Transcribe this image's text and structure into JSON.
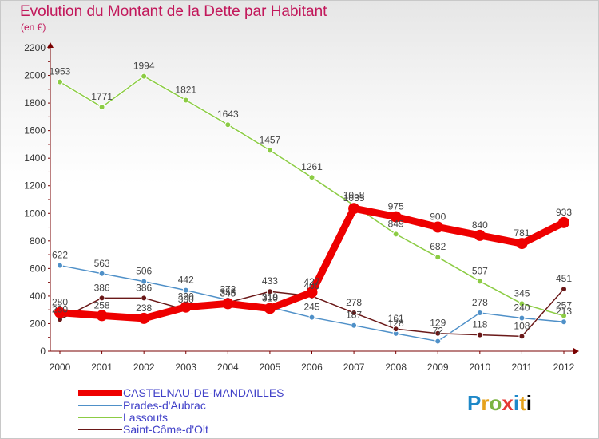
{
  "title": "Evolution du Montant de la Dette par Habitant",
  "subtitle": "(en €)",
  "logo": {
    "letters": [
      "P",
      "r",
      "o",
      "x",
      "i",
      "t",
      "i"
    ]
  },
  "chart_data": {
    "type": "line",
    "title": "Evolution du Montant de la Dette par Habitant",
    "ylabel": "(en €)",
    "xlabel": "",
    "x": [
      "2000",
      "2001",
      "2002",
      "2003",
      "2004",
      "2005",
      "2006",
      "2007",
      "2008",
      "2009",
      "2010",
      "2011",
      "2012"
    ],
    "ylim": [
      0,
      2200
    ],
    "yticks": [
      "0",
      "200",
      "400",
      "600",
      "800",
      "1000",
      "1200",
      "1400",
      "1600",
      "1800",
      "2000",
      "2200"
    ],
    "grid": false,
    "legend_position": "bottom-left",
    "series": [
      {
        "name": "CASTELNAU-DE-MANDAILLES",
        "color": "#ee0000",
        "style": "bold",
        "values": [
          280,
          258,
          238,
          320,
          345,
          310,
          427,
          1035,
          975,
          900,
          840,
          781,
          933
        ],
        "labels": [
          "280",
          "258",
          "238",
          "320",
          "345",
          "310",
          "427",
          "1035",
          "975",
          "900",
          "840",
          "781",
          "933"
        ]
      },
      {
        "name": "Prades-d'Aubrac",
        "color": "#4f90c8",
        "style": "thin",
        "values": [
          622,
          563,
          506,
          442,
          372,
          319,
          245,
          187,
          128,
          72,
          278,
          240,
          213
        ],
        "labels": [
          "622",
          "563",
          "506",
          "442",
          "372",
          "319",
          "245",
          "187",
          "128",
          "72",
          "278",
          "240",
          "213"
        ]
      },
      {
        "name": "Lassouts",
        "color": "#8ccc44",
        "style": "thin",
        "values": [
          1953,
          1771,
          1994,
          1821,
          1643,
          1457,
          1261,
          1058,
          849,
          682,
          507,
          345,
          257
        ],
        "labels": [
          "1953",
          "1771",
          "1994",
          "1821",
          "1643",
          "1457",
          "1261",
          "1058",
          "849",
          "682",
          "507",
          "345",
          "257"
        ]
      },
      {
        "name": "Saint-Côme-d'Olt",
        "color": "#6a1818",
        "style": "thin",
        "values": [
          230,
          386,
          386,
          300,
          353,
          433,
          400,
          278,
          161,
          129,
          118,
          108,
          451
        ],
        "labels": [
          "230",
          "386",
          "386",
          "300",
          "353",
          "433",
          "400",
          "278",
          "161",
          "129",
          "118",
          "108",
          "451"
        ]
      }
    ]
  }
}
